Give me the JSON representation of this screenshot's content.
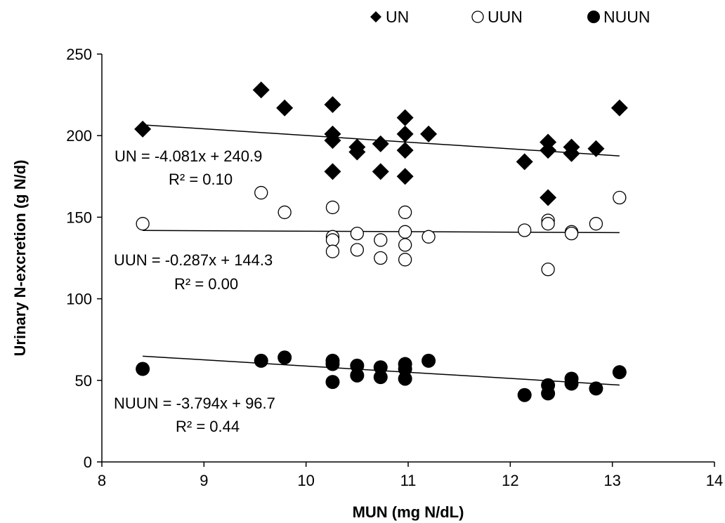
{
  "chart_data": {
    "type": "scatter",
    "xlabel": "MUN (mg N/dL)",
    "ylabel": "Urinary N-excretion (g N/d)",
    "xlim": [
      8,
      14
    ],
    "ylim": [
      0,
      250
    ],
    "xticks": [
      8,
      9,
      10,
      11,
      12,
      13,
      14
    ],
    "yticks": [
      0,
      50,
      100,
      150,
      200,
      250
    ],
    "grid": false,
    "legend_placement": "top-right",
    "series": [
      {
        "name": "UN",
        "marker": "diamond",
        "color": "#000000",
        "points": [
          [
            8.4,
            204
          ],
          [
            9.56,
            228
          ],
          [
            9.79,
            217
          ],
          [
            10.26,
            219
          ],
          [
            10.26,
            201
          ],
          [
            10.26,
            197
          ],
          [
            10.26,
            178
          ],
          [
            10.5,
            193
          ],
          [
            10.5,
            190
          ],
          [
            10.73,
            195
          ],
          [
            10.73,
            178
          ],
          [
            10.97,
            211
          ],
          [
            10.97,
            201
          ],
          [
            10.97,
            191
          ],
          [
            10.97,
            175
          ],
          [
            11.2,
            201
          ],
          [
            12.14,
            184
          ],
          [
            12.37,
            196
          ],
          [
            12.37,
            191
          ],
          [
            12.37,
            162
          ],
          [
            12.6,
            193
          ],
          [
            12.6,
            189
          ],
          [
            12.84,
            192
          ],
          [
            13.07,
            217
          ]
        ],
        "trend": {
          "slope": -4.081,
          "intercept": 240.9,
          "x_range": [
            8.4,
            13.07
          ]
        }
      },
      {
        "name": "UUN",
        "marker": "open-circle",
        "color": "#000000",
        "points": [
          [
            8.4,
            146
          ],
          [
            9.56,
            165
          ],
          [
            9.79,
            153
          ],
          [
            10.26,
            156
          ],
          [
            10.26,
            138
          ],
          [
            10.26,
            136
          ],
          [
            10.26,
            129
          ],
          [
            10.5,
            140
          ],
          [
            10.5,
            130
          ],
          [
            10.73,
            136
          ],
          [
            10.73,
            125
          ],
          [
            10.97,
            153
          ],
          [
            10.97,
            141
          ],
          [
            10.97,
            133
          ],
          [
            10.97,
            124
          ],
          [
            11.2,
            138
          ],
          [
            12.14,
            142
          ],
          [
            12.37,
            148
          ],
          [
            12.37,
            146
          ],
          [
            12.37,
            118
          ],
          [
            12.6,
            141
          ],
          [
            12.6,
            140
          ],
          [
            12.84,
            146
          ],
          [
            13.07,
            162
          ]
        ],
        "trend": {
          "slope": -0.287,
          "intercept": 144.3,
          "x_range": [
            8.4,
            13.07
          ]
        }
      },
      {
        "name": "NUUN",
        "marker": "filled-circle",
        "color": "#000000",
        "points": [
          [
            8.4,
            57
          ],
          [
            9.56,
            62
          ],
          [
            9.79,
            64
          ],
          [
            10.26,
            62
          ],
          [
            10.26,
            60
          ],
          [
            10.26,
            49
          ],
          [
            10.5,
            59
          ],
          [
            10.5,
            53
          ],
          [
            10.73,
            58
          ],
          [
            10.73,
            52
          ],
          [
            10.97,
            60
          ],
          [
            10.97,
            57
          ],
          [
            10.97,
            51
          ],
          [
            11.2,
            62
          ],
          [
            12.14,
            41
          ],
          [
            12.37,
            47
          ],
          [
            12.37,
            42
          ],
          [
            12.6,
            51
          ],
          [
            12.6,
            48
          ],
          [
            12.84,
            45
          ],
          [
            13.07,
            55
          ]
        ],
        "trend": {
          "slope": -3.794,
          "intercept": 96.7,
          "x_range": [
            8.4,
            13.07
          ]
        }
      }
    ],
    "legend": [
      {
        "label": "UN",
        "symbol": "◆"
      },
      {
        "label": "UUN",
        "symbol": "○"
      },
      {
        "label": "NUUN",
        "symbol": "●"
      }
    ],
    "annotations": [
      {
        "series": "UN",
        "equation": "UN = -4.081x + 240.9",
        "r2": "R² = 0.10"
      },
      {
        "series": "UUN",
        "equation": "UUN = -0.287x + 144.3",
        "r2": "R² = 0.00"
      },
      {
        "series": "NUUN",
        "equation": "NUUN = -3.794x + 96.7",
        "r2": "R² = 0.44"
      }
    ]
  }
}
